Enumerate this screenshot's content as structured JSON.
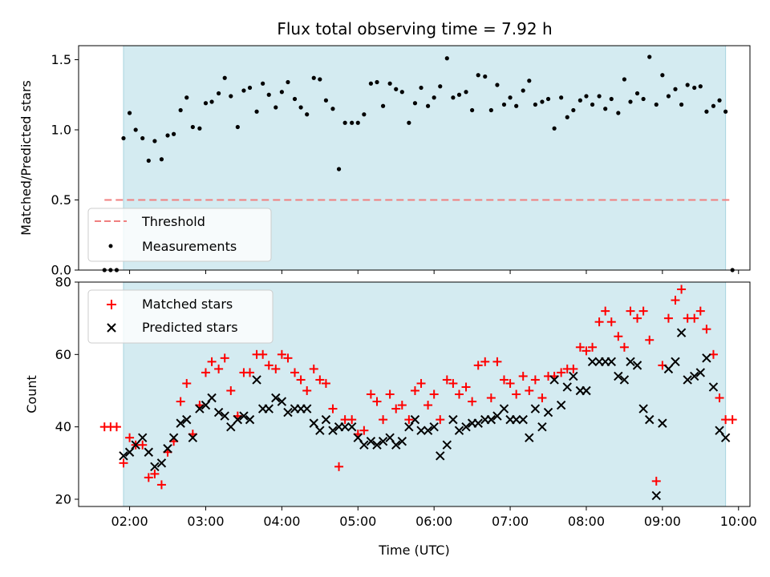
{
  "chart_data": [
    {
      "type": "scatter",
      "title": "Flux total observing time = 7.92 h",
      "xlabel": "",
      "ylabel": "Matched/Predicted stars",
      "x_unit": "hours UTC",
      "xlim": [
        1.33,
        10.15
      ],
      "ylim": [
        0.0,
        1.6
      ],
      "yticks": [
        0.0,
        0.5,
        1.0,
        1.5
      ],
      "ytick_labels": [
        "0.0",
        "0.5",
        "1.0",
        "1.5"
      ],
      "grid": false,
      "legend_position": "lower-left",
      "observing_window": [
        1.92,
        9.83
      ],
      "observing_window_color": "#d4ebf1",
      "threshold": {
        "name": "Threshold",
        "value": 0.5,
        "x_range": [
          1.67,
          9.92
        ],
        "color": "#f07f7f",
        "style": "dashed"
      },
      "series": [
        {
          "name": "Measurements",
          "color": "#000000",
          "marker": "dot",
          "x": [
            1.67,
            1.75,
            1.83,
            1.92,
            2.0,
            2.08,
            2.17,
            2.25,
            2.33,
            2.42,
            2.5,
            2.58,
            2.67,
            2.75,
            2.83,
            2.92,
            3.0,
            3.08,
            3.17,
            3.25,
            3.33,
            3.42,
            3.5,
            3.58,
            3.67,
            3.75,
            3.83,
            3.92,
            4.0,
            4.08,
            4.17,
            4.25,
            4.33,
            4.42,
            4.5,
            4.58,
            4.67,
            4.75,
            4.83,
            4.92,
            5.0,
            5.08,
            5.17,
            5.25,
            5.33,
            5.42,
            5.5,
            5.58,
            5.67,
            5.75,
            5.83,
            5.92,
            6.0,
            6.08,
            6.17,
            6.25,
            6.33,
            6.42,
            6.5,
            6.58,
            6.67,
            6.75,
            6.83,
            6.92,
            7.0,
            7.08,
            7.17,
            7.25,
            7.33,
            7.42,
            7.5,
            7.58,
            7.67,
            7.75,
            7.83,
            7.92,
            8.0,
            8.08,
            8.17,
            8.25,
            8.33,
            8.42,
            8.5,
            8.58,
            8.67,
            8.75,
            8.83,
            8.92,
            9.0,
            9.08,
            9.17,
            9.25,
            9.33,
            9.42,
            9.5,
            9.58,
            9.67,
            9.75,
            9.83,
            9.92
          ],
          "y": [
            0.0,
            0.0,
            0.0,
            0.94,
            1.12,
            1.0,
            0.94,
            0.78,
            0.92,
            0.79,
            0.96,
            0.97,
            1.14,
            1.23,
            1.02,
            1.01,
            1.19,
            1.2,
            1.26,
            1.37,
            1.24,
            1.02,
            1.28,
            1.3,
            1.13,
            1.33,
            1.25,
            1.16,
            1.27,
            1.34,
            1.22,
            1.16,
            1.11,
            1.37,
            1.36,
            1.21,
            1.15,
            0.72,
            1.05,
            1.05,
            1.05,
            1.11,
            1.33,
            1.34,
            1.17,
            1.33,
            1.29,
            1.27,
            1.05,
            1.19,
            1.3,
            1.17,
            1.23,
            1.31,
            1.51,
            1.23,
            1.25,
            1.27,
            1.14,
            1.39,
            1.38,
            1.14,
            1.32,
            1.18,
            1.23,
            1.17,
            1.28,
            1.35,
            1.18,
            1.2,
            1.22,
            1.01,
            1.23,
            1.09,
            1.14,
            1.21,
            1.24,
            1.18,
            1.24,
            1.15,
            1.22,
            1.12,
            1.36,
            1.2,
            1.26,
            1.22,
            1.52,
            1.18,
            1.39,
            1.24,
            1.29,
            1.18,
            1.32,
            1.3,
            1.31,
            1.13,
            1.17,
            1.21,
            1.13,
            0.0
          ]
        }
      ]
    },
    {
      "type": "scatter",
      "title": "",
      "xlabel": "Time (UTC)",
      "ylabel": "Count",
      "x_unit": "hours UTC",
      "xlim": [
        1.33,
        10.15
      ],
      "ylim": [
        18,
        80
      ],
      "yticks": [
        20,
        40,
        60,
        80
      ],
      "ytick_labels": [
        "20",
        "40",
        "60",
        "80"
      ],
      "xticks": [
        2,
        3,
        4,
        5,
        6,
        7,
        8,
        9,
        10
      ],
      "xtick_labels": [
        "02:00",
        "03:00",
        "04:00",
        "05:00",
        "06:00",
        "07:00",
        "08:00",
        "09:00",
        "10:00"
      ],
      "grid": false,
      "legend_position": "upper-left",
      "observing_window": [
        1.92,
        9.83
      ],
      "observing_window_color": "#d4ebf1",
      "x": [
        1.67,
        1.75,
        1.83,
        1.92,
        2.0,
        2.08,
        2.17,
        2.25,
        2.33,
        2.42,
        2.5,
        2.58,
        2.67,
        2.75,
        2.83,
        2.92,
        3.0,
        3.08,
        3.17,
        3.25,
        3.33,
        3.42,
        3.5,
        3.58,
        3.67,
        3.75,
        3.83,
        3.92,
        4.0,
        4.08,
        4.17,
        4.25,
        4.33,
        4.42,
        4.5,
        4.58,
        4.67,
        4.75,
        4.83,
        4.92,
        5.0,
        5.08,
        5.17,
        5.25,
        5.33,
        5.42,
        5.5,
        5.58,
        5.67,
        5.75,
        5.83,
        5.92,
        6.0,
        6.08,
        6.17,
        6.25,
        6.33,
        6.42,
        6.5,
        6.58,
        6.67,
        6.75,
        6.83,
        6.92,
        7.0,
        7.08,
        7.17,
        7.25,
        7.33,
        7.42,
        7.5,
        7.58,
        7.67,
        7.75,
        7.83,
        7.92,
        8.0,
        8.08,
        8.17,
        8.25,
        8.33,
        8.42,
        8.5,
        8.58,
        8.67,
        8.75,
        8.83,
        8.92,
        9.0,
        9.08,
        9.17,
        9.25,
        9.33,
        9.42,
        9.5,
        9.58,
        9.67,
        9.75,
        9.83,
        9.92
      ],
      "series": [
        {
          "name": "Matched stars",
          "color": "#ff0000",
          "marker": "plus",
          "y": [
            40,
            40,
            40,
            30,
            37,
            35,
            35,
            26,
            27,
            24,
            33,
            36,
            47,
            52,
            38,
            46,
            55,
            58,
            56,
            59,
            50,
            43,
            55,
            55,
            60,
            60,
            57,
            56,
            60,
            59,
            55,
            53,
            50,
            56,
            53,
            52,
            45,
            29,
            42,
            42,
            38,
            39,
            49,
            47,
            42,
            49,
            45,
            46,
            42,
            50,
            52,
            46,
            49,
            42,
            53,
            52,
            49,
            51,
            47,
            57,
            58,
            48,
            58,
            53,
            52,
            49,
            54,
            50,
            53,
            48,
            54,
            54,
            55,
            56,
            56,
            62,
            61,
            62,
            69,
            72,
            69,
            65,
            62,
            72,
            70,
            72,
            64,
            25,
            57,
            70,
            75,
            78,
            70,
            70,
            72,
            67,
            60,
            48,
            42,
            42
          ]
        },
        {
          "name": "Predicted stars",
          "color": "#000000",
          "marker": "x",
          "y": [
            null,
            null,
            null,
            32,
            33,
            35,
            37,
            33,
            29,
            30,
            34,
            37,
            41,
            42,
            37,
            45,
            46,
            48,
            44,
            43,
            40,
            42,
            43,
            42,
            53,
            45,
            45,
            48,
            47,
            44,
            45,
            45,
            45,
            41,
            39,
            42,
            39,
            40,
            40,
            40,
            37,
            35,
            36,
            35,
            36,
            37,
            35,
            36,
            40,
            42,
            39,
            39,
            40,
            32,
            35,
            42,
            39,
            40,
            41,
            41,
            42,
            42,
            43,
            45,
            42,
            42,
            42,
            37,
            45,
            40,
            44,
            53,
            46,
            51,
            54,
            50,
            50,
            58,
            58,
            58,
            58,
            54,
            53,
            58,
            57,
            45,
            42,
            21,
            41,
            56,
            58,
            66,
            53,
            54,
            55,
            59,
            51,
            39,
            37,
            null
          ]
        }
      ]
    }
  ]
}
